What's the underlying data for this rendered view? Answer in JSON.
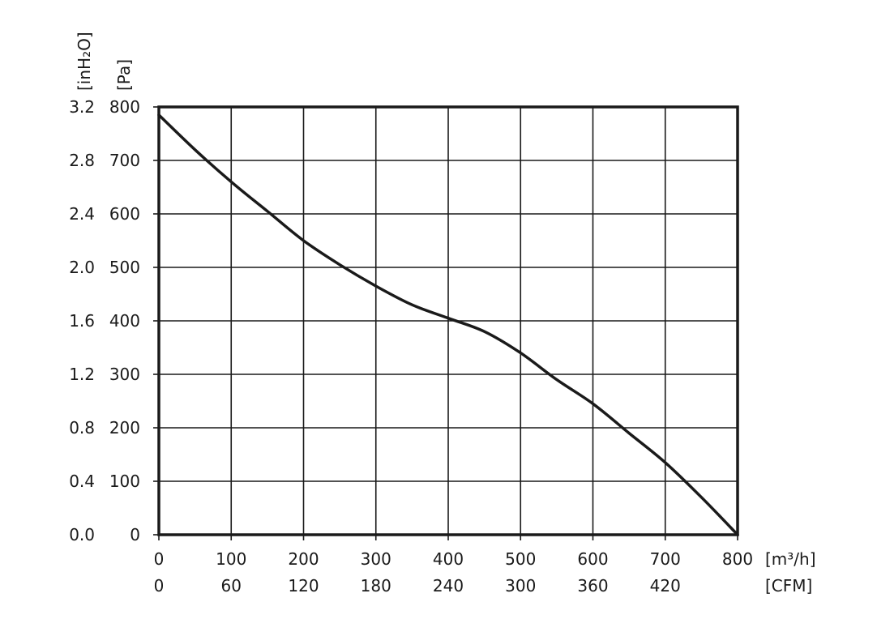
{
  "chart_data": {
    "type": "line",
    "title": "",
    "x_primary": {
      "unit_label": "[m³/h]",
      "range": [
        0,
        800
      ],
      "ticks": [
        "0",
        "100",
        "200",
        "300",
        "400",
        "500",
        "600",
        "700",
        "800"
      ]
    },
    "x_secondary": {
      "unit_label": "[CFM]",
      "ticks": [
        "0",
        "60",
        "120",
        "180",
        "240",
        "300",
        "360",
        "420"
      ]
    },
    "y_primary": {
      "unit_label": "[Pa]",
      "range": [
        0,
        800
      ],
      "ticks": [
        "0",
        "100",
        "200",
        "300",
        "400",
        "500",
        "600",
        "700",
        "800"
      ]
    },
    "y_secondary": {
      "unit_label": "[inH₂O]",
      "ticks": [
        "0.0",
        "0.4",
        "0.8",
        "1.2",
        "1.6",
        "2.0",
        "2.4",
        "2.8",
        "3.2"
      ]
    },
    "grid": true,
    "series": [
      {
        "color": "#1a1a1a",
        "x": [
          0,
          50,
          100,
          150,
          200,
          250,
          300,
          350,
          400,
          450,
          500,
          550,
          600,
          650,
          700,
          750,
          800
        ],
        "y": [
          785,
          720,
          660,
          605,
          550,
          505,
          465,
          430,
          405,
          380,
          340,
          290,
          245,
          190,
          135,
          70,
          0
        ]
      }
    ]
  }
}
